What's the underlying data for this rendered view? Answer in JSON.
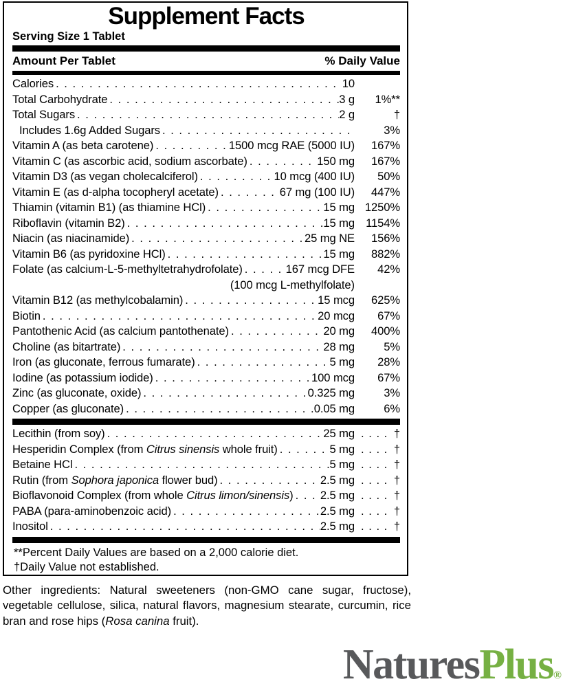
{
  "panel": {
    "title": "Supplement Facts",
    "serving_size": "Serving Size 1 Tablet",
    "columns": {
      "left": "Amount Per Tablet",
      "right": "% Daily Value"
    },
    "sections": [
      {
        "trail_dots": false,
        "rows": [
          {
            "name": "Calories",
            "amount": "10",
            "dv": ""
          },
          {
            "name": "Total Carbohydrate",
            "amount": "3 g",
            "dv": "1%**"
          },
          {
            "name": "Total Sugars",
            "amount": "2 g",
            "dv": "†"
          },
          {
            "name": "Includes 1.6g Added Sugars",
            "amount": "",
            "dv": "3%",
            "indent": true
          },
          {
            "name": "Vitamin A (as beta carotene)",
            "amount": "1500 mcg RAE (5000 IU)",
            "dv": "167%"
          },
          {
            "name": "Vitamin C (as ascorbic acid, sodium ascorbate)",
            "amount": "150 mg",
            "dv": "167%"
          },
          {
            "name": "Vitamin D3 (as vegan cholecalciferol)",
            "amount": "10 mcg (400 IU)",
            "dv": "50%"
          },
          {
            "name": "Vitamin E (as d-alpha tocopheryl acetate)",
            "amount": "67 mg (100 IU)",
            "dv": "447%"
          },
          {
            "name": "Thiamin (vitamin B1) (as thiamine HCl)",
            "amount": "15 mg",
            "dv": "1250%"
          },
          {
            "name": "Riboflavin (vitamin B2)",
            "amount": "15 mg",
            "dv": "1154%"
          },
          {
            "name": "Niacin (as niacinamide)",
            "amount": "25 mg NE",
            "dv": "156%"
          },
          {
            "name": "Vitamin B6 (as pyridoxine HCl)",
            "amount": "15 mg",
            "dv": "882%"
          },
          {
            "name": "Folate (as calcium-L-5-methyltetrahydrofolate)",
            "amount": "167 mcg DFE",
            "dv": "42%",
            "sub": "(100 mcg L-methylfolate)"
          },
          {
            "name": "Vitamin B12 (as methylcobalamin)",
            "amount": "15 mcg",
            "dv": "625%"
          },
          {
            "name": "Biotin",
            "amount": "20 mcg",
            "dv": "67%"
          },
          {
            "name": "Pantothenic Acid (as calcium pantothenate)",
            "amount": "20 mg",
            "dv": "400%"
          },
          {
            "name": "Choline (as bitartrate)",
            "amount": "28 mg",
            "dv": "5%"
          },
          {
            "name": "Iron (as gluconate, ferrous fumarate)",
            "amount": "5 mg",
            "dv": "28%"
          },
          {
            "name": "Iodine (as potassium iodide)",
            "amount": "100 mcg",
            "dv": "67%"
          },
          {
            "name": "Zinc (as gluconate, oxide)",
            "amount": "0.325 mg",
            "dv": "3%"
          },
          {
            "name": "Copper (as gluconate)",
            "amount": "0.05 mg",
            "dv": "6%"
          }
        ]
      },
      {
        "trail_dots": true,
        "rows": [
          {
            "name": "Lecithin (from soy)",
            "amount": "25 mg",
            "dv": "†"
          },
          {
            "name": "Hesperidin Complex (from *Citrus sinensis* whole fruit)",
            "amount": "5 mg",
            "dv": "†"
          },
          {
            "name": "Betaine HCl",
            "amount": "5 mg",
            "dv": "†"
          },
          {
            "name": "Rutin (from *Sophora japonica* flower bud)",
            "amount": "2.5 mg",
            "dv": "†"
          },
          {
            "name": "Bioflavonoid Complex (from whole *Citrus limon/sinensis*)",
            "amount": "2.5 mg",
            "dv": "†"
          },
          {
            "name": "PABA (para-aminobenzoic acid)",
            "amount": "2.5 mg",
            "dv": "†"
          },
          {
            "name": "Inositol",
            "amount": "2.5 mg",
            "dv": "†"
          }
        ]
      }
    ],
    "footnotes": [
      "**Percent Daily Values are based on a 2,000 calorie diet.",
      "†Daily Value not established."
    ]
  },
  "other_ingredients": "Other ingredients: Natural sweeteners (non-GMO cane sugar, fructose), vegetable cellulose, silica, natural flavors, magnesium stearate, curcumin, rice bran and rose hips (*Rosa canina* fruit).",
  "logo": {
    "part1": "Natures",
    "part2": "Plus",
    "registered": "®",
    "gray": "#58595b",
    "green": "#76b043"
  }
}
